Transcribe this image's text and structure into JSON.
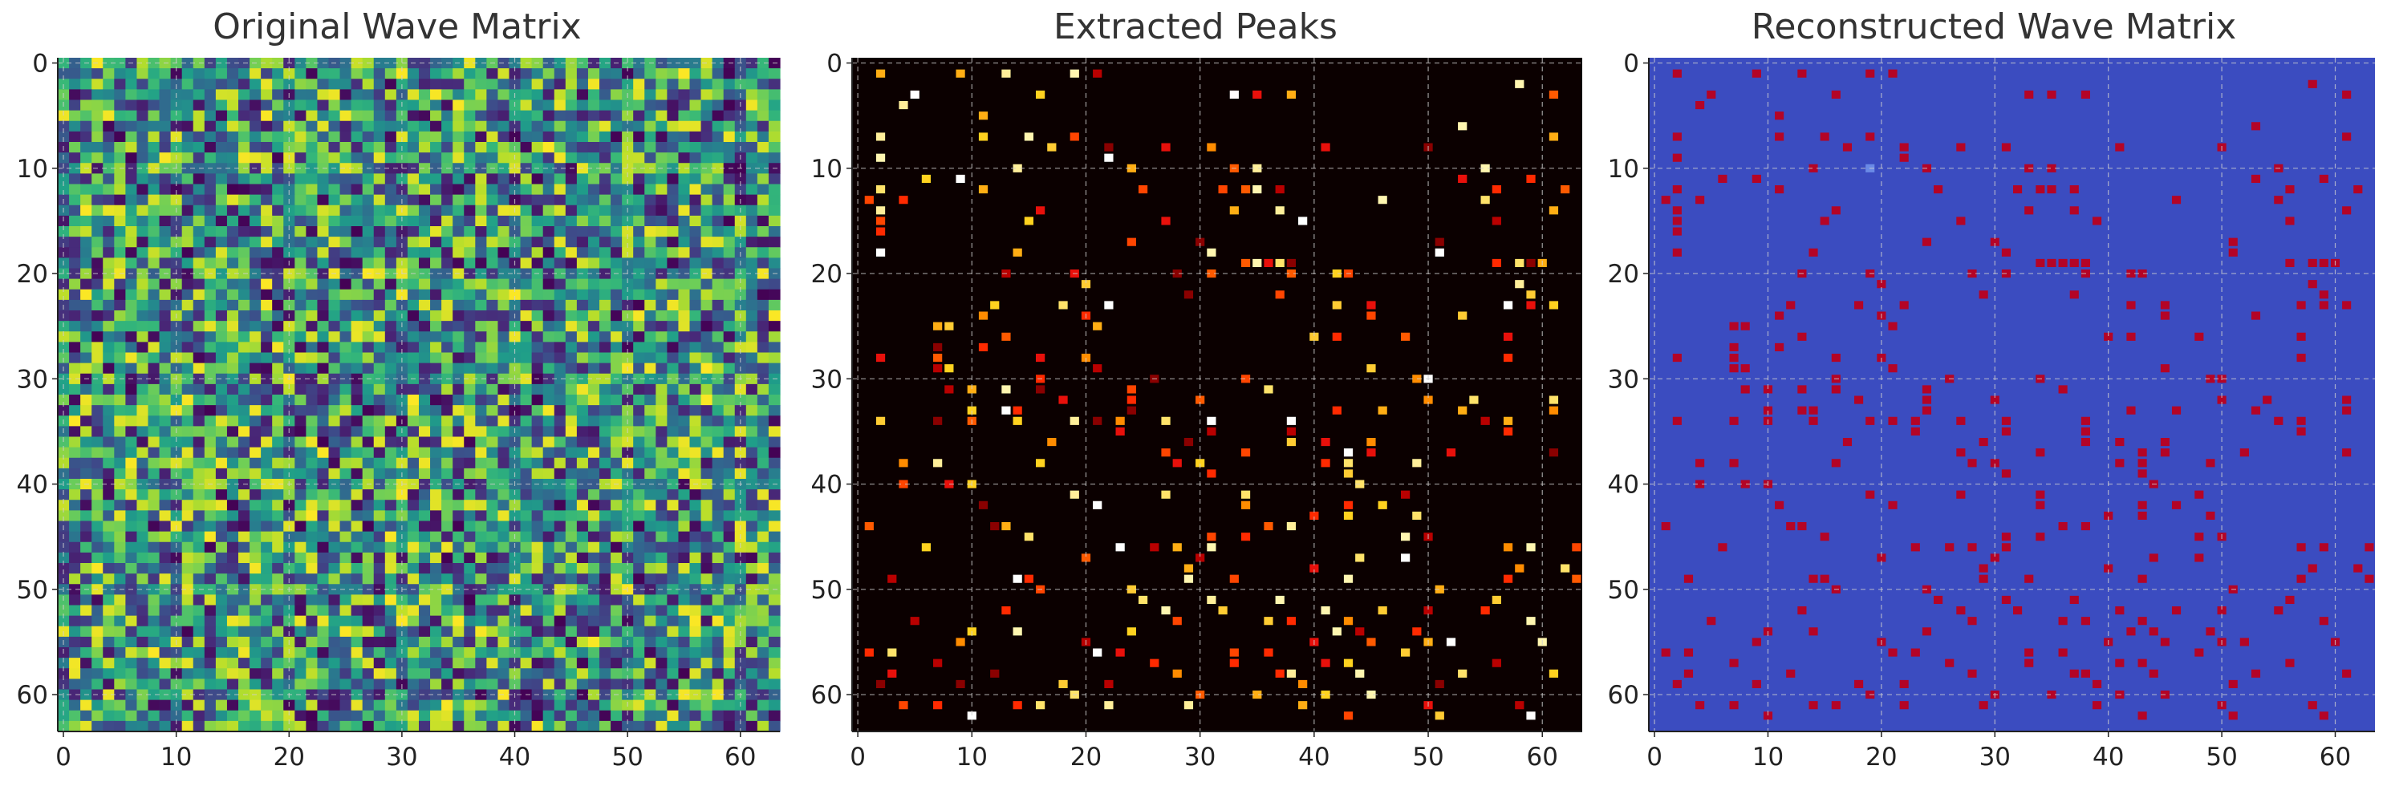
{
  "chart_data": [
    {
      "type": "heatmap",
      "title": "Original Wave Matrix",
      "colormap": "viridis",
      "matrix_size": [
        64,
        64
      ],
      "xlim": [
        -0.5,
        63.5
      ],
      "ylim": [
        63.5,
        -0.5
      ],
      "xticks": [
        0,
        10,
        20,
        30,
        40,
        50,
        60
      ],
      "yticks": [
        0,
        10,
        20,
        30,
        40,
        50,
        60
      ],
      "grid": true,
      "values_description": "random values, -1 to 1"
    },
    {
      "type": "heatmap",
      "title": "Extracted Peaks",
      "colormap": "hot",
      "matrix_size": [
        64,
        64
      ],
      "xlim": [
        -0.5,
        63.5
      ],
      "ylim": [
        63.5,
        -0.5
      ],
      "xticks": [
        0,
        10,
        20,
        30,
        40,
        50,
        60
      ],
      "yticks": [
        0,
        10,
        20,
        30,
        40,
        50,
        60
      ],
      "grid": true,
      "background": "#0b0000",
      "points": [
        [
          1,
          2
        ],
        [
          1,
          9
        ],
        [
          1,
          13
        ],
        [
          1,
          19
        ],
        [
          1,
          21
        ],
        [
          2,
          58
        ],
        [
          3,
          5
        ],
        [
          3,
          16
        ],
        [
          3,
          33
        ],
        [
          3,
          35
        ],
        [
          3,
          38
        ],
        [
          3,
          61
        ],
        [
          4,
          4
        ],
        [
          5,
          11
        ],
        [
          6,
          53
        ],
        [
          7,
          2
        ],
        [
          7,
          11
        ],
        [
          7,
          15
        ],
        [
          7,
          19
        ],
        [
          7,
          61
        ],
        [
          8,
          17
        ],
        [
          8,
          22
        ],
        [
          8,
          27
        ],
        [
          8,
          31
        ],
        [
          8,
          41
        ],
        [
          8,
          50
        ],
        [
          9,
          2
        ],
        [
          9,
          22
        ],
        [
          10,
          14
        ],
        [
          10,
          24
        ],
        [
          10,
          33
        ],
        [
          10,
          35
        ],
        [
          10,
          55
        ],
        [
          11,
          6
        ],
        [
          11,
          9
        ],
        [
          11,
          53
        ],
        [
          11,
          59
        ],
        [
          12,
          2
        ],
        [
          12,
          11
        ],
        [
          12,
          25
        ],
        [
          12,
          32
        ],
        [
          12,
          34
        ],
        [
          12,
          35
        ],
        [
          12,
          37
        ],
        [
          12,
          56
        ],
        [
          12,
          62
        ],
        [
          13,
          1
        ],
        [
          13,
          4
        ],
        [
          13,
          46
        ],
        [
          13,
          55
        ],
        [
          14,
          2
        ],
        [
          14,
          16
        ],
        [
          14,
          33
        ],
        [
          14,
          37
        ],
        [
          14,
          61
        ],
        [
          15,
          2
        ],
        [
          15,
          15
        ],
        [
          15,
          27
        ],
        [
          15,
          39
        ],
        [
          15,
          56
        ],
        [
          16,
          2
        ],
        [
          17,
          24
        ],
        [
          17,
          30
        ],
        [
          17,
          51
        ],
        [
          18,
          2
        ],
        [
          18,
          14
        ],
        [
          18,
          31
        ],
        [
          18,
          51
        ],
        [
          19,
          34
        ],
        [
          19,
          35
        ],
        [
          19,
          36
        ],
        [
          19,
          37
        ],
        [
          19,
          38
        ],
        [
          19,
          56
        ],
        [
          19,
          58
        ],
        [
          19,
          59
        ],
        [
          19,
          60
        ],
        [
          20,
          13
        ],
        [
          20,
          19
        ],
        [
          20,
          28
        ],
        [
          20,
          31
        ],
        [
          20,
          38
        ],
        [
          20,
          42
        ],
        [
          20,
          43
        ],
        [
          21,
          20
        ],
        [
          21,
          58
        ],
        [
          22,
          29
        ],
        [
          22,
          37
        ],
        [
          22,
          59
        ],
        [
          23,
          12
        ],
        [
          23,
          18
        ],
        [
          23,
          22
        ],
        [
          23,
          42
        ],
        [
          23,
          45
        ],
        [
          23,
          57
        ],
        [
          23,
          59
        ],
        [
          23,
          61
        ],
        [
          24,
          11
        ],
        [
          24,
          20
        ],
        [
          24,
          45
        ],
        [
          24,
          53
        ],
        [
          25,
          7
        ],
        [
          25,
          8
        ],
        [
          25,
          21
        ],
        [
          26,
          13
        ],
        [
          26,
          40
        ],
        [
          26,
          42
        ],
        [
          26,
          48
        ],
        [
          26,
          57
        ],
        [
          27,
          7
        ],
        [
          27,
          11
        ],
        [
          28,
          2
        ],
        [
          28,
          7
        ],
        [
          28,
          16
        ],
        [
          28,
          20
        ],
        [
          28,
          57
        ],
        [
          29,
          7
        ],
        [
          29,
          8
        ],
        [
          29,
          21
        ],
        [
          29,
          45
        ],
        [
          30,
          16
        ],
        [
          30,
          26
        ],
        [
          30,
          34
        ],
        [
          30,
          49
        ],
        [
          30,
          50
        ],
        [
          31,
          8
        ],
        [
          31,
          10
        ],
        [
          31,
          13
        ],
        [
          31,
          16
        ],
        [
          31,
          24
        ],
        [
          31,
          36
        ],
        [
          32,
          18
        ],
        [
          32,
          24
        ],
        [
          32,
          30
        ],
        [
          32,
          50
        ],
        [
          32,
          54
        ],
        [
          32,
          61
        ],
        [
          33,
          10
        ],
        [
          33,
          13
        ],
        [
          33,
          14
        ],
        [
          33,
          24
        ],
        [
          33,
          42
        ],
        [
          33,
          46
        ],
        [
          33,
          53
        ],
        [
          33,
          61
        ],
        [
          34,
          2
        ],
        [
          34,
          7
        ],
        [
          34,
          10
        ],
        [
          34,
          14
        ],
        [
          34,
          19
        ],
        [
          34,
          21
        ],
        [
          34,
          23
        ],
        [
          34,
          27
        ],
        [
          34,
          31
        ],
        [
          34,
          38
        ],
        [
          34,
          55
        ],
        [
          34,
          57
        ],
        [
          35,
          23
        ],
        [
          35,
          31
        ],
        [
          35,
          38
        ],
        [
          35,
          57
        ],
        [
          36,
          17
        ],
        [
          36,
          29
        ],
        [
          36,
          38
        ],
        [
          36,
          41
        ],
        [
          36,
          45
        ],
        [
          37,
          27
        ],
        [
          37,
          34
        ],
        [
          37,
          43
        ],
        [
          37,
          45
        ],
        [
          37,
          52
        ],
        [
          37,
          61
        ],
        [
          38,
          4
        ],
        [
          38,
          7
        ],
        [
          38,
          16
        ],
        [
          38,
          28
        ],
        [
          38,
          30
        ],
        [
          38,
          41
        ],
        [
          38,
          43
        ],
        [
          38,
          49
        ],
        [
          39,
          31
        ],
        [
          39,
          43
        ],
        [
          40,
          4
        ],
        [
          40,
          8
        ],
        [
          40,
          10
        ],
        [
          40,
          44
        ],
        [
          41,
          19
        ],
        [
          41,
          27
        ],
        [
          41,
          34
        ],
        [
          41,
          48
        ],
        [
          42,
          11
        ],
        [
          42,
          21
        ],
        [
          42,
          34
        ],
        [
          42,
          43
        ],
        [
          42,
          46
        ],
        [
          43,
          40
        ],
        [
          43,
          43
        ],
        [
          43,
          49
        ],
        [
          44,
          1
        ],
        [
          44,
          12
        ],
        [
          44,
          13
        ],
        [
          44,
          36
        ],
        [
          44,
          38
        ],
        [
          45,
          15
        ],
        [
          45,
          31
        ],
        [
          45,
          34
        ],
        [
          45,
          48
        ],
        [
          45,
          50
        ],
        [
          46,
          6
        ],
        [
          46,
          23
        ],
        [
          46,
          26
        ],
        [
          46,
          28
        ],
        [
          46,
          31
        ],
        [
          46,
          57
        ],
        [
          46,
          59
        ],
        [
          46,
          63
        ],
        [
          47,
          20
        ],
        [
          47,
          30
        ],
        [
          47,
          44
        ],
        [
          47,
          48
        ],
        [
          48,
          29
        ],
        [
          48,
          40
        ],
        [
          48,
          58
        ],
        [
          48,
          62
        ],
        [
          49,
          3
        ],
        [
          49,
          14
        ],
        [
          49,
          15
        ],
        [
          49,
          29
        ],
        [
          49,
          33
        ],
        [
          49,
          43
        ],
        [
          49,
          57
        ],
        [
          49,
          63
        ],
        [
          50,
          16
        ],
        [
          50,
          24
        ],
        [
          50,
          51
        ],
        [
          51,
          25
        ],
        [
          51,
          31
        ],
        [
          51,
          37
        ],
        [
          51,
          56
        ],
        [
          52,
          13
        ],
        [
          52,
          27
        ],
        [
          52,
          32
        ],
        [
          52,
          41
        ],
        [
          52,
          46
        ],
        [
          52,
          50
        ],
        [
          52,
          55
        ],
        [
          53,
          5
        ],
        [
          53,
          28
        ],
        [
          53,
          36
        ],
        [
          53,
          38
        ],
        [
          53,
          43
        ],
        [
          53,
          59
        ],
        [
          54,
          10
        ],
        [
          54,
          14
        ],
        [
          54,
          24
        ],
        [
          54,
          42
        ],
        [
          54,
          44
        ],
        [
          54,
          49
        ],
        [
          55,
          9
        ],
        [
          55,
          20
        ],
        [
          55,
          40
        ],
        [
          55,
          45
        ],
        [
          55,
          50
        ],
        [
          55,
          52
        ],
        [
          55,
          60
        ],
        [
          56,
          1
        ],
        [
          56,
          3
        ],
        [
          56,
          21
        ],
        [
          56,
          23
        ],
        [
          56,
          33
        ],
        [
          56,
          36
        ],
        [
          56,
          48
        ],
        [
          57,
          7
        ],
        [
          57,
          26
        ],
        [
          57,
          33
        ],
        [
          57,
          41
        ],
        [
          57,
          43
        ],
        [
          57,
          56
        ],
        [
          58,
          3
        ],
        [
          58,
          12
        ],
        [
          58,
          28
        ],
        [
          58,
          37
        ],
        [
          58,
          38
        ],
        [
          58,
          44
        ],
        [
          58,
          53
        ],
        [
          58,
          61
        ],
        [
          59,
          2
        ],
        [
          59,
          9
        ],
        [
          59,
          18
        ],
        [
          59,
          22
        ],
        [
          59,
          39
        ],
        [
          59,
          51
        ],
        [
          60,
          19
        ],
        [
          60,
          30
        ],
        [
          60,
          35
        ],
        [
          60,
          41
        ],
        [
          60,
          45
        ],
        [
          61,
          4
        ],
        [
          61,
          7
        ],
        [
          61,
          14
        ],
        [
          61,
          16
        ],
        [
          61,
          22
        ],
        [
          61,
          29
        ],
        [
          61,
          39
        ],
        [
          61,
          50
        ],
        [
          61,
          58
        ],
        [
          62,
          10
        ],
        [
          62,
          43
        ],
        [
          62,
          51
        ],
        [
          62,
          59
        ]
      ]
    },
    {
      "type": "heatmap",
      "title": "Reconstructed Wave Matrix",
      "colormap": "coolwarm",
      "matrix_size": [
        64,
        64
      ],
      "xlim": [
        -0.5,
        63.5
      ],
      "ylim": [
        63.5,
        -0.5
      ],
      "xticks": [
        0,
        10,
        20,
        30,
        40,
        50,
        60
      ],
      "yticks": [
        0,
        10,
        20,
        30,
        40,
        50,
        60
      ],
      "grid": true,
      "background_color": "#3b4cc0",
      "peak_color": "#b40426",
      "same_points_as": "Extracted Peaks"
    }
  ]
}
